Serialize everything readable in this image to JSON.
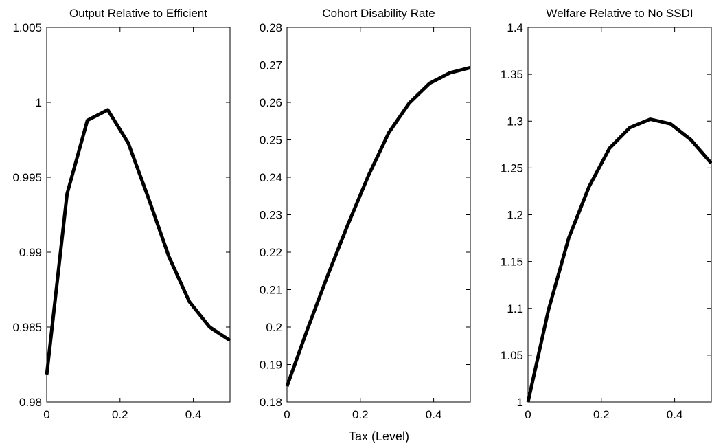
{
  "figure": {
    "xlabel": "Tax (Level)"
  },
  "chart_data": [
    {
      "type": "line",
      "title": "Output Relative to Efficient",
      "xlim": [
        0,
        0.5
      ],
      "ylim": [
        0.98,
        1.005
      ],
      "x_ticks": [
        "0",
        "0.2",
        "0.4"
      ],
      "x_tick_values": [
        0,
        0.2,
        0.4
      ],
      "y_ticks": [
        "0.98",
        "0.985",
        "0.99",
        "0.995",
        "1",
        "1.005"
      ],
      "y_tick_values": [
        0.98,
        0.985,
        0.99,
        0.995,
        1.0,
        1.005
      ],
      "series": [
        {
          "color": "#000000",
          "x": [
            0,
            0.0556,
            0.1111,
            0.1667,
            0.2222,
            0.2778,
            0.3333,
            0.3889,
            0.4444,
            0.5
          ],
          "y": [
            0.9818,
            0.9939,
            0.9988,
            0.9995,
            0.9973,
            0.9936,
            0.9897,
            0.9867,
            0.985,
            0.9841
          ]
        }
      ]
    },
    {
      "type": "line",
      "title": "Cohort Disability Rate",
      "xlim": [
        0,
        0.5
      ],
      "ylim": [
        0.18,
        0.28
      ],
      "x_ticks": [
        "0",
        "0.2",
        "0.4"
      ],
      "x_tick_values": [
        0,
        0.2,
        0.4
      ],
      "y_ticks": [
        "0.18",
        "0.19",
        "0.2",
        "0.21",
        "0.22",
        "0.23",
        "0.24",
        "0.25",
        "0.26",
        "0.27",
        "0.28"
      ],
      "y_tick_values": [
        0.18,
        0.19,
        0.2,
        0.21,
        0.22,
        0.23,
        0.24,
        0.25,
        0.26,
        0.27,
        0.28
      ],
      "series": [
        {
          "color": "#000000",
          "x": [
            0,
            0.0556,
            0.1111,
            0.1667,
            0.2222,
            0.2778,
            0.3333,
            0.3889,
            0.4444,
            0.5
          ],
          "y": [
            0.1842,
            0.1994,
            0.2138,
            0.2275,
            0.2405,
            0.2519,
            0.2598,
            0.2651,
            0.2679,
            0.2693
          ]
        }
      ]
    },
    {
      "type": "line",
      "title": "Welfare Relative to No SSDI",
      "xlim": [
        0,
        0.5
      ],
      "ylim": [
        1,
        1.4
      ],
      "x_ticks": [
        "0",
        "0.2",
        "0.4"
      ],
      "x_tick_values": [
        0,
        0.2,
        0.4
      ],
      "y_ticks": [
        "1",
        "1.05",
        "1.1",
        "1.15",
        "1.2",
        "1.25",
        "1.3",
        "1.35",
        "1.4"
      ],
      "y_tick_values": [
        1.0,
        1.05,
        1.1,
        1.15,
        1.2,
        1.25,
        1.3,
        1.35,
        1.4
      ],
      "series": [
        {
          "color": "#000000",
          "x": [
            0,
            0.0556,
            0.1111,
            0.1667,
            0.2222,
            0.2778,
            0.3333,
            0.3889,
            0.4444,
            0.5
          ],
          "y": [
            1.0,
            1.098,
            1.175,
            1.23,
            1.271,
            1.293,
            1.302,
            1.297,
            1.28,
            1.255
          ]
        }
      ]
    }
  ]
}
